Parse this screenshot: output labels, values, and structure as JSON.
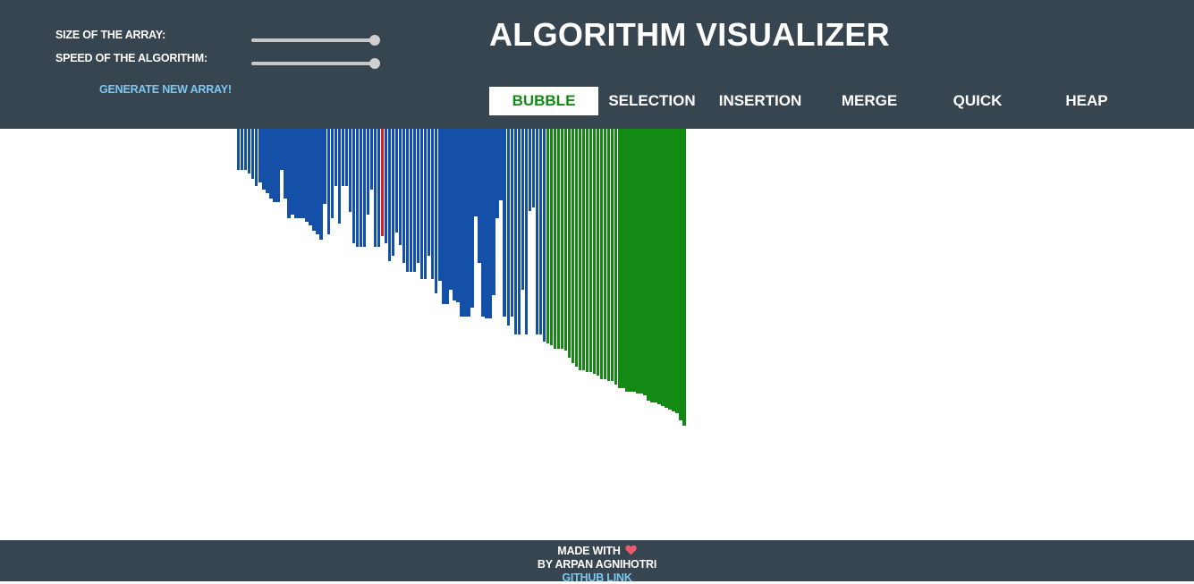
{
  "header": {
    "title": "ALGORITHM VISUALIZER",
    "size_label": "SIZE OF THE ARRAY:",
    "speed_label": "SPEED OF THE ALGORITHM:",
    "size_value": 1.0,
    "speed_value": 1.0,
    "generate_label": "GENERATE NEW ARRAY!",
    "algorithms": [
      {
        "label": "BUBBLE",
        "active": true
      },
      {
        "label": "SELECTION",
        "active": false
      },
      {
        "label": "INSERTION",
        "active": false
      },
      {
        "label": "MERGE",
        "active": false
      },
      {
        "label": "QUICK",
        "active": false
      },
      {
        "label": "HEAP",
        "active": false
      }
    ]
  },
  "array": {
    "colors": {
      "unsorted": "#1450a8",
      "comparing": "#e02020",
      "sorted": "#138a13"
    },
    "values": [
      46,
      46,
      46,
      50,
      56,
      64,
      60,
      68,
      72,
      78,
      82,
      82,
      46,
      78,
      100,
      96,
      100,
      100,
      100,
      104,
      108,
      114,
      118,
      124,
      84,
      118,
      100,
      64,
      106,
      64,
      64,
      93,
      128,
      132,
      132,
      132,
      96,
      68,
      132,
      132,
      120,
      128,
      148,
      142,
      116,
      130,
      150,
      160,
      160,
      160,
      150,
      168,
      168,
      142,
      168,
      184,
      170,
      196,
      196,
      180,
      192,
      194,
      210,
      210,
      210,
      200,
      98,
      150,
      210,
      212,
      212,
      186,
      100,
      80,
      210,
      220,
      210,
      230,
      230,
      180,
      230,
      92,
      88,
      230,
      230,
      238,
      240,
      242,
      246,
      246,
      246,
      248,
      256,
      262,
      266,
      270,
      270,
      272,
      272,
      274,
      276,
      280,
      280,
      282,
      282,
      286,
      290,
      290,
      294,
      294,
      294,
      296,
      296,
      298,
      304,
      306,
      306,
      308,
      310,
      312,
      314,
      316,
      318,
      326,
      332
    ],
    "states": [
      "u",
      "u",
      "u",
      "u",
      "u",
      "u",
      "u",
      "u",
      "u",
      "u",
      "u",
      "u",
      "u",
      "u",
      "u",
      "u",
      "u",
      "u",
      "u",
      "u",
      "u",
      "u",
      "u",
      "u",
      "u",
      "u",
      "u",
      "u",
      "u",
      "u",
      "u",
      "u",
      "u",
      "u",
      "u",
      "u",
      "u",
      "u",
      "u",
      "u",
      "c",
      "u",
      "u",
      "u",
      "u",
      "u",
      "u",
      "u",
      "u",
      "u",
      "u",
      "u",
      "u",
      "u",
      "u",
      "u",
      "u",
      "u",
      "u",
      "u",
      "u",
      "u",
      "u",
      "u",
      "u",
      "u",
      "u",
      "u",
      "u",
      "u",
      "u",
      "u",
      "u",
      "u",
      "u",
      "u",
      "u",
      "u",
      "u",
      "u",
      "u",
      "u",
      "u",
      "u",
      "u",
      "u",
      "s",
      "s",
      "s",
      "s",
      "s",
      "s",
      "s",
      "s",
      "s",
      "s",
      "s",
      "s",
      "s",
      "s",
      "s",
      "s",
      "s",
      "s",
      "s",
      "s",
      "s",
      "s",
      "s",
      "s",
      "s",
      "s",
      "s",
      "s",
      "s",
      "s",
      "s",
      "s",
      "s",
      "s",
      "s",
      "s",
      "s",
      "s",
      "s"
    ]
  },
  "footer": {
    "made_with": "MADE WITH",
    "author": "BY ARPAN AGNIHOTRI",
    "github_label": "GITHUB LINK"
  }
}
